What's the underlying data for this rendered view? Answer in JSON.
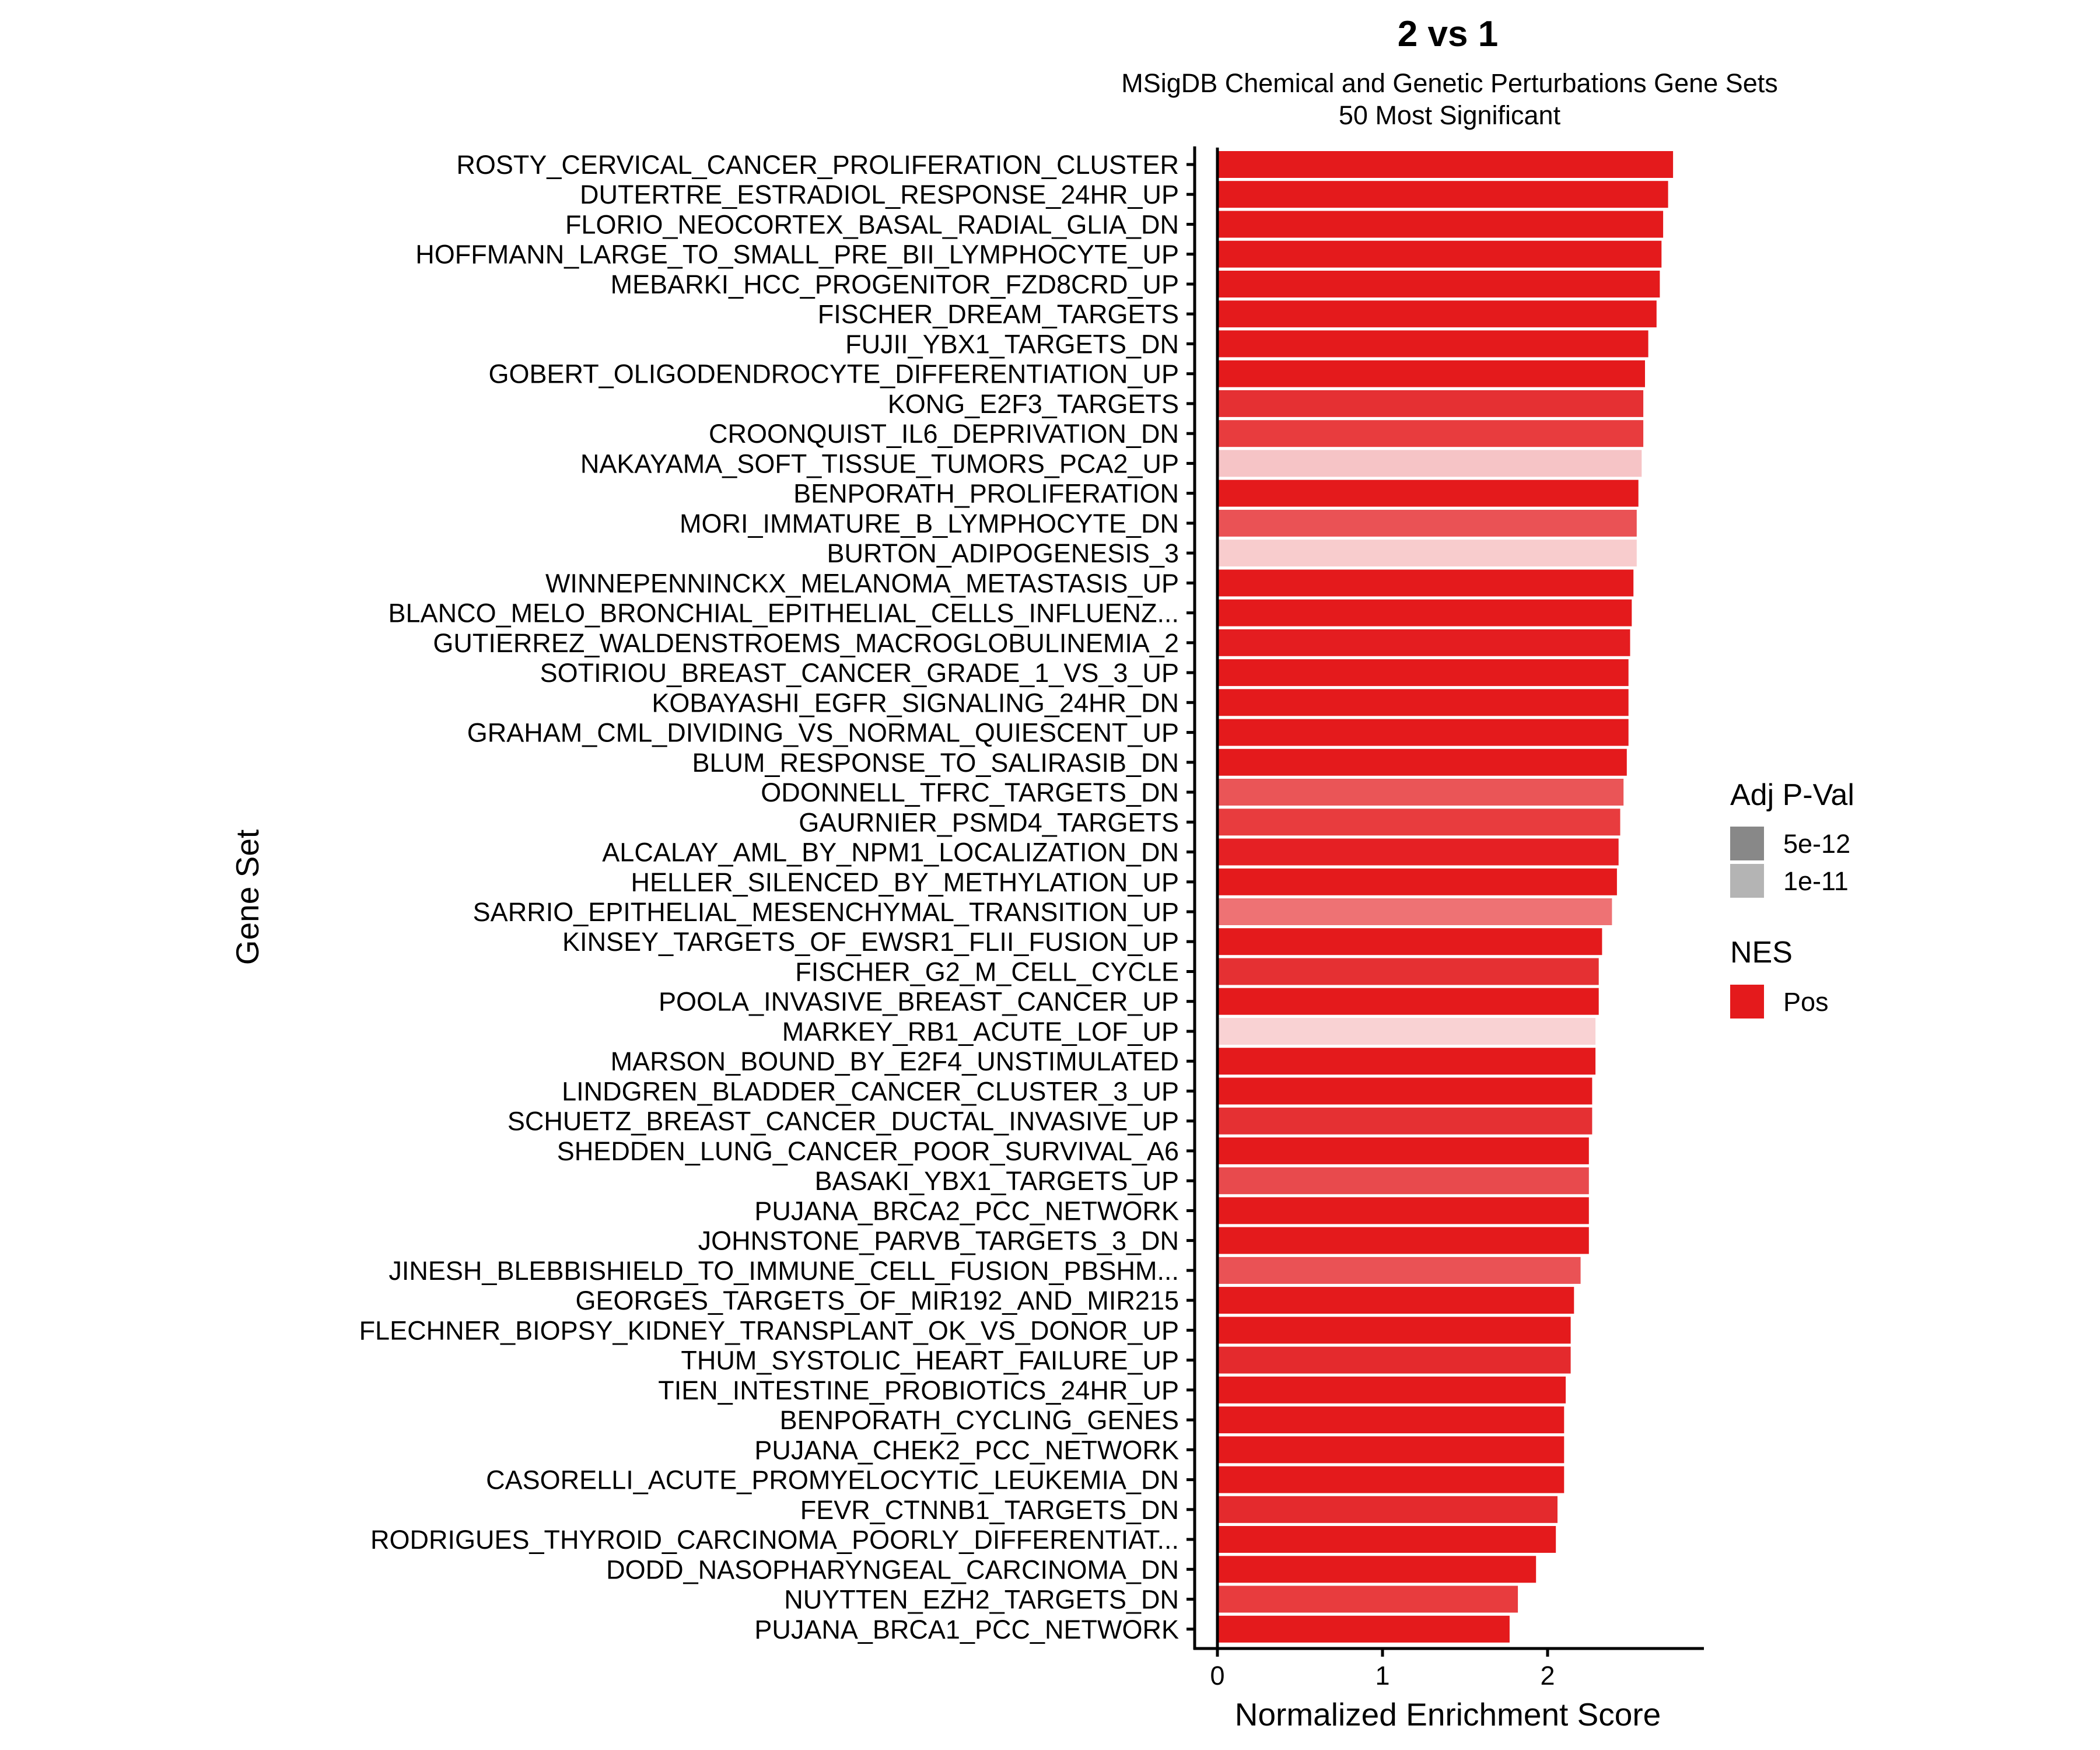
{
  "chart_data": {
    "type": "bar",
    "orientation": "horizontal",
    "title": "2 vs 1",
    "subtitle_lines": [
      "MSigDB Chemical and Genetic Perturbations Gene Sets",
      "50 Most Significant"
    ],
    "xlabel": "Normalized Enrichment Score",
    "ylabel": "Gene Set",
    "xlim": [
      -0.05,
      2.87
    ],
    "xticks": [
      0,
      1,
      2
    ],
    "xtick_labels": [
      "0",
      "1",
      "2"
    ],
    "grid": false,
    "legend_position": "right",
    "legends": [
      {
        "title": "Adj P-Val",
        "entries": [
          {
            "label": "5e-12",
            "color": "#888888"
          },
          {
            "label": "1e-11",
            "color": "#B4B4B4"
          }
        ]
      },
      {
        "title": "NES",
        "entries": [
          {
            "label": "Pos",
            "color": "#E41A1C"
          }
        ]
      }
    ],
    "categories": [
      "ROSTY_CERVICAL_CANCER_PROLIFERATION_CLUSTER",
      "DUTERTRE_ESTRADIOL_RESPONSE_24HR_UP",
      "FLORIO_NEOCORTEX_BASAL_RADIAL_GLIA_DN",
      "HOFFMANN_LARGE_TO_SMALL_PRE_BII_LYMPHOCYTE_UP",
      "MEBARKI_HCC_PROGENITOR_FZD8CRD_UP",
      "FISCHER_DREAM_TARGETS",
      "FUJII_YBX1_TARGETS_DN",
      "GOBERT_OLIGODENDROCYTE_DIFFERENTIATION_UP",
      "KONG_E2F3_TARGETS",
      "CROONQUIST_IL6_DEPRIVATION_DN",
      "NAKAYAMA_SOFT_TISSUE_TUMORS_PCA2_UP",
      "BENPORATH_PROLIFERATION",
      "MORI_IMMATURE_B_LYMPHOCYTE_DN",
      "BURTON_ADIPOGENESIS_3",
      "WINNEPENNINCKX_MELANOMA_METASTASIS_UP",
      "BLANCO_MELO_BRONCHIAL_EPITHELIAL_CELLS_INFLUENZ...",
      "GUTIERREZ_WALDENSTROEMS_MACROGLOBULINEMIA_2",
      "SOTIRIOU_BREAST_CANCER_GRADE_1_VS_3_UP",
      "KOBAYASHI_EGFR_SIGNALING_24HR_DN",
      "GRAHAM_CML_DIVIDING_VS_NORMAL_QUIESCENT_UP",
      "BLUM_RESPONSE_TO_SALIRASIB_DN",
      "ODONNELL_TFRC_TARGETS_DN",
      "GAURNIER_PSMD4_TARGETS",
      "ALCALAY_AML_BY_NPM1_LOCALIZATION_DN",
      "HELLER_SILENCED_BY_METHYLATION_UP",
      "SARRIO_EPITHELIAL_MESENCHYMAL_TRANSITION_UP",
      "KINSEY_TARGETS_OF_EWSR1_FLII_FUSION_UP",
      "FISCHER_G2_M_CELL_CYCLE",
      "POOLA_INVASIVE_BREAST_CANCER_UP",
      "MARKEY_RB1_ACUTE_LOF_UP",
      "MARSON_BOUND_BY_E2F4_UNSTIMULATED",
      "LINDGREN_BLADDER_CANCER_CLUSTER_3_UP",
      "SCHUETZ_BREAST_CANCER_DUCTAL_INVASIVE_UP",
      "SHEDDEN_LUNG_CANCER_POOR_SURVIVAL_A6",
      "BASAKI_YBX1_TARGETS_UP",
      "PUJANA_BRCA2_PCC_NETWORK",
      "JOHNSTONE_PARVB_TARGETS_3_DN",
      "JINESH_BLEBBISHIELD_TO_IMMUNE_CELL_FUSION_PBSHM...",
      "GEORGES_TARGETS_OF_MIR192_AND_MIR215",
      "FLECHNER_BIOPSY_KIDNEY_TRANSPLANT_OK_VS_DONOR_UP",
      "THUM_SYSTOLIC_HEART_FAILURE_UP",
      "TIEN_INTESTINE_PROBIOTICS_24HR_UP",
      "BENPORATH_CYCLING_GENES",
      "PUJANA_CHEK2_PCC_NETWORK",
      "CASORELLI_ACUTE_PROMYELOCYTIC_LEUKEMIA_DN",
      "FEVR_CTNNB1_TARGETS_DN",
      "RODRIGUES_THYROID_CARCINOMA_POORLY_DIFFERENTIAT...",
      "DODD_NASOPHARYNGEAL_CARCINOMA_DN",
      "NUYTTEN_EZH2_TARGETS_DN",
      "PUJANA_BRCA1_PCC_NETWORK"
    ],
    "values": [
      2.76,
      2.73,
      2.7,
      2.69,
      2.68,
      2.66,
      2.61,
      2.59,
      2.58,
      2.58,
      2.57,
      2.55,
      2.54,
      2.54,
      2.52,
      2.51,
      2.5,
      2.49,
      2.49,
      2.49,
      2.48,
      2.46,
      2.44,
      2.43,
      2.42,
      2.39,
      2.33,
      2.31,
      2.31,
      2.29,
      2.29,
      2.27,
      2.27,
      2.25,
      2.25,
      2.25,
      2.25,
      2.2,
      2.16,
      2.14,
      2.14,
      2.11,
      2.1,
      2.1,
      2.1,
      2.06,
      2.05,
      1.93,
      1.82,
      1.77
    ],
    "bar_colors": [
      "#E41A1C",
      "#E41A1C",
      "#E41A1C",
      "#E41A1C",
      "#E41A1C",
      "#E41A1C",
      "#E41A1C",
      "#E41A1C",
      "#E53033",
      "#E83C3E",
      "#F6C4C6",
      "#E41A1C",
      "#EA5255",
      "#F8CCCD",
      "#E41A1C",
      "#E41A1C",
      "#E41D20",
      "#E41A1C",
      "#E41A1C",
      "#E41A1C",
      "#E41A1C",
      "#EA5557",
      "#E83C3E",
      "#E52024",
      "#E41A1C",
      "#EE7274",
      "#E41A1C",
      "#E53033",
      "#E41A1C",
      "#F9D2D3",
      "#E41A1C",
      "#E41A1C",
      "#E53033",
      "#E41A1C",
      "#E84A4D",
      "#E41A1C",
      "#E41A1C",
      "#EA5255",
      "#E41A1C",
      "#E41A1C",
      "#E42A2D",
      "#E41A1C",
      "#E41A1C",
      "#E41A1C",
      "#E41A1C",
      "#E42A2D",
      "#E41A1C",
      "#E41A1C",
      "#E83C3E",
      "#E41A1C"
    ]
  }
}
